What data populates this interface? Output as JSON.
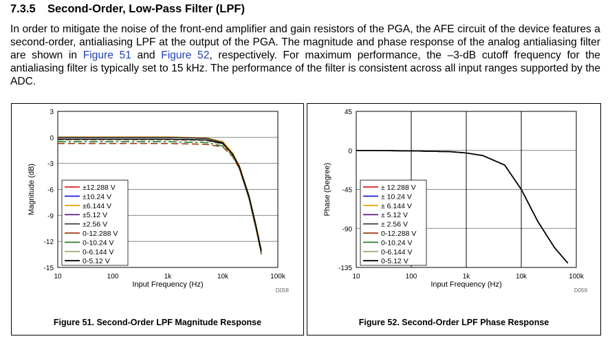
{
  "section": {
    "number": "7.3.5",
    "title": "Second-Order, Low-Pass Filter (LPF)"
  },
  "paragraph": {
    "text1": "In order to mitigate the noise of the front-end amplifier and gain resistors of the PGA, the AFE circuit of the device features a second-order, antialiasing LPF at the output of the PGA. The magnitude and phase response of the analog antialiasing filter are shown in ",
    "link1": "Figure 51",
    "text2": " and ",
    "link2": "Figure 52",
    "text3": ", respectively. For maximum performance, the –3-dB cutoff frequency for the antialiasing filter is typically set to 15 kHz. The performance of the filter is consistent across all input ranges supported by the ADC."
  },
  "legend_colors": [
    "#d62020",
    "#1a1ae6",
    "#f0a800",
    "#6a2a8a",
    "#3a3a3a",
    "#9a3a10",
    "#2e7a2e",
    "#a8a87a",
    "#000000"
  ],
  "chart_data": [
    {
      "type": "line",
      "ylabel": "Magnitude (dB)",
      "xlabel": "Input Frequency (Hz)",
      "xscale": "log",
      "xlim": [
        10,
        100000
      ],
      "ylim": [
        -15,
        3
      ],
      "xticks": [
        "10",
        "100",
        "1k",
        "10k",
        "100k"
      ],
      "yticks": [
        "3",
        "0",
        "-3",
        "-6",
        "-9",
        "-12",
        "-15"
      ],
      "grid": "horizontal",
      "legend_position": "bottom-left",
      "code": "D058",
      "caption": "Figure 51. Second-Order LPF Magnitude Response",
      "x": [
        10,
        100,
        1000,
        5000,
        10000,
        15000,
        20000,
        30000,
        40000,
        50000
      ],
      "series": [
        {
          "name": "±12.288 V",
          "values": [
            0,
            0,
            0,
            -0.1,
            -0.5,
            -1.8,
            -3.3,
            -6.8,
            -10.2,
            -13.0
          ]
        },
        {
          "name": "±10.24 V",
          "values": [
            0,
            0,
            0,
            -0.1,
            -0.5,
            -1.9,
            -3.4,
            -6.9,
            -10.3,
            -13.1
          ]
        },
        {
          "name": "±6.144 V",
          "values": [
            0.05,
            0.05,
            0.05,
            -0.05,
            -0.5,
            -1.8,
            -3.3,
            -6.8,
            -10.1,
            -13.0
          ]
        },
        {
          "name": "±5.12 V",
          "values": [
            0,
            0,
            0,
            -0.1,
            -0.6,
            -2.0,
            -3.5,
            -7.0,
            -10.4,
            -13.2
          ]
        },
        {
          "name": "±2.56 V",
          "values": [
            0,
            0,
            0,
            -0.1,
            -0.6,
            -2.1,
            -3.6,
            -7.1,
            -10.5,
            -13.3
          ]
        },
        {
          "name": "0-12.288 V",
          "values": [
            -0.7,
            -0.7,
            -0.7,
            -0.8,
            -1.1,
            -2.2,
            -3.6,
            -7.0,
            -10.4,
            -13.5
          ]
        },
        {
          "name": "0-10.24 V",
          "values": [
            -0.5,
            -0.5,
            -0.5,
            -0.6,
            -1.0,
            -2.1,
            -3.5,
            -6.9,
            -10.3,
            -13.3
          ]
        },
        {
          "name": "0-6.144 V",
          "values": [
            -0.3,
            -0.3,
            -0.3,
            -0.4,
            -0.8,
            -2.0,
            -3.4,
            -6.8,
            -10.1,
            -13.0
          ]
        },
        {
          "name": "0-5.12 V",
          "values": [
            -0.2,
            -0.2,
            -0.2,
            -0.3,
            -0.7,
            -1.9,
            -3.4,
            -6.8,
            -10.2,
            -13.1
          ]
        }
      ]
    },
    {
      "type": "line",
      "ylabel": "Phase (Degree)",
      "xlabel": "Input Frequency (Hz)",
      "xscale": "log",
      "xlim": [
        10,
        100000
      ],
      "ylim": [
        -135,
        45
      ],
      "xticks": [
        "10",
        "100",
        "1k",
        "10k",
        "100k"
      ],
      "yticks": [
        "45",
        "0",
        "-45",
        "-90",
        "-135"
      ],
      "grid": "both",
      "legend_position": "bottom-left",
      "code": "D059",
      "caption": "Figure 52. Second-Order LPF Phase Response",
      "x": [
        10,
        100,
        500,
        1000,
        2000,
        5000,
        10000,
        20000,
        40000,
        70000
      ],
      "series": [
        {
          "name": "± 12.288 V",
          "values": [
            0,
            -0.5,
            -1.5,
            -3,
            -6,
            -17,
            -45,
            -82,
            -112,
            -130
          ]
        },
        {
          "name": "± 10.24 V",
          "values": [
            0,
            -0.5,
            -1.5,
            -3,
            -6,
            -17,
            -45,
            -82,
            -112,
            -130
          ]
        },
        {
          "name": "± 6.144 V",
          "values": [
            0,
            -0.5,
            -1.5,
            -3,
            -6,
            -17,
            -45,
            -82,
            -112,
            -130
          ]
        },
        {
          "name": "± 5.12 V",
          "values": [
            0,
            -0.5,
            -1.5,
            -3,
            -6,
            -17,
            -45,
            -82,
            -112,
            -130
          ]
        },
        {
          "name": "± 2.56 V",
          "values": [
            0,
            -0.5,
            -1.5,
            -3,
            -6,
            -17,
            -45,
            -82,
            -112,
            -130
          ]
        },
        {
          "name": "0-12.288 V",
          "values": [
            0,
            -0.5,
            -1.5,
            -3,
            -6,
            -17,
            -45,
            -82,
            -112,
            -130
          ]
        },
        {
          "name": "0-10.24 V",
          "values": [
            0,
            -0.5,
            -1.5,
            -3,
            -6,
            -17,
            -45,
            -82,
            -112,
            -130
          ]
        },
        {
          "name": "0-6.144 V",
          "values": [
            0,
            -0.5,
            -1.5,
            -3,
            -6,
            -17,
            -45,
            -82,
            -112,
            -130
          ]
        },
        {
          "name": "0-5.12 V",
          "values": [
            0,
            -0.5,
            -1.5,
            -3,
            -6,
            -17,
            -45,
            -82,
            -112,
            -130
          ]
        }
      ]
    }
  ]
}
